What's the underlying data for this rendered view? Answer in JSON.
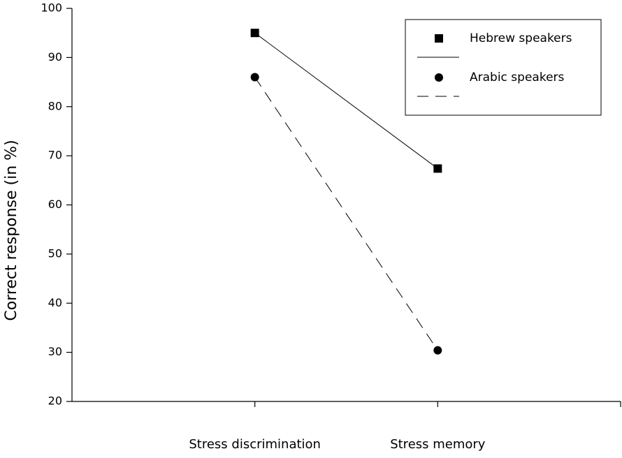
{
  "chart_data": {
    "type": "line",
    "y_label": "Correct response (in %)",
    "categories": [
      "Stress discrimination",
      "Stress memory"
    ],
    "series": [
      {
        "name": "Hebrew speakers",
        "color": "#000000",
        "marker": "square",
        "line_style": "solid",
        "values": [
          95,
          67.4
        ]
      },
      {
        "name": "Arabic speakers",
        "color": "#000000",
        "marker": "circle",
        "line_style": "dashed",
        "values": [
          86,
          30.4
        ]
      }
    ],
    "ylim": [
      20,
      100
    ],
    "yticks": [
      20,
      30,
      40,
      50,
      60,
      70,
      80,
      90,
      100
    ],
    "grid": false,
    "legend": "upper right"
  }
}
